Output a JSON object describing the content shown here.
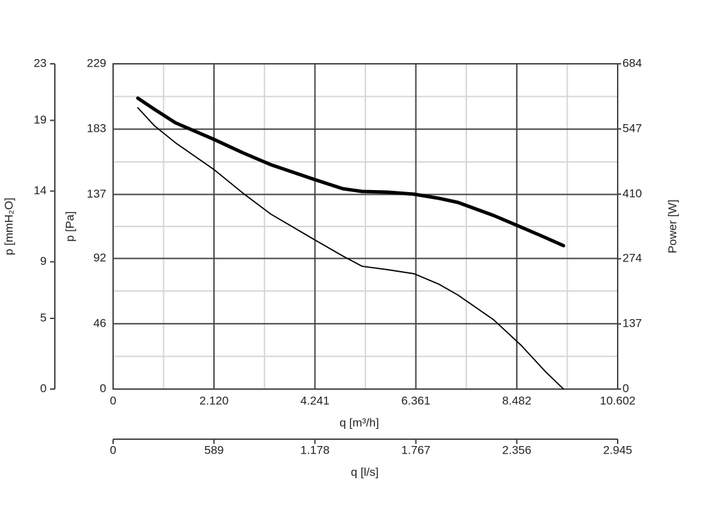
{
  "chart_data": {
    "type": "line",
    "xlabel": "q [m³/h]",
    "xlim": [
      0,
      10602
    ],
    "xticks": [
      0,
      {
        "value": 2120,
        "label": "2.120"
      },
      {
        "value": 4241,
        "label": "4.241"
      },
      {
        "value": 6361,
        "label": "6.361"
      },
      {
        "value": 8482,
        "label": "8.482"
      },
      {
        "value": 10602,
        "label": "10.602"
      }
    ],
    "x2label": "q [l/s]",
    "x2lim": [
      0,
      2945
    ],
    "x2ticks": [
      0,
      589,
      {
        "value": 1178,
        "label": "1.178"
      },
      {
        "value": 1767,
        "label": "1.767"
      },
      {
        "value": 2356,
        "label": "2.356"
      },
      {
        "value": 2945,
        "label": "2.945"
      }
    ],
    "ylabel": "p [Pa]",
    "ylim": [
      0,
      229
    ],
    "yticks": [
      0,
      46,
      92,
      137,
      183,
      229
    ],
    "y2label": "Power [W]",
    "y2lim": [
      0,
      684
    ],
    "y2ticks": [
      0,
      137,
      274,
      410,
      547,
      684
    ],
    "y3label": "p [mmH₂O]",
    "y3lim": [
      0,
      23
    ],
    "y3ticks": [
      0,
      5,
      9,
      14,
      19,
      23
    ],
    "grid": true,
    "x": [
      519,
      864,
      1311,
      2117,
      2737,
      3313,
      4249,
      4826,
      5229,
      5762,
      6324,
      6843,
      7246,
      7995,
      8571,
      9075,
      9464
    ],
    "series": [
      {
        "color": "#000000",
        "line_width": 1.8,
        "values": [
          198.1,
          185.5,
          173.4,
          154.6,
          137.7,
          123.2,
          104.8,
          93.7,
          86.5,
          84.1,
          81.2,
          73.9,
          66.2,
          48.8,
          30.9,
          12.6,
          0
        ]
      },
      {
        "color": "#000000",
        "line_width": 5,
        "axis": "y2",
        "values": [
          611.8,
          588.7,
          559.9,
          525.2,
          496.4,
          471.9,
          440.1,
          421.4,
          415.6,
          414.2,
          409.8,
          401.2,
          392.5,
          365.1,
          340.6,
          318.9,
          301.6
        ]
      }
    ]
  }
}
